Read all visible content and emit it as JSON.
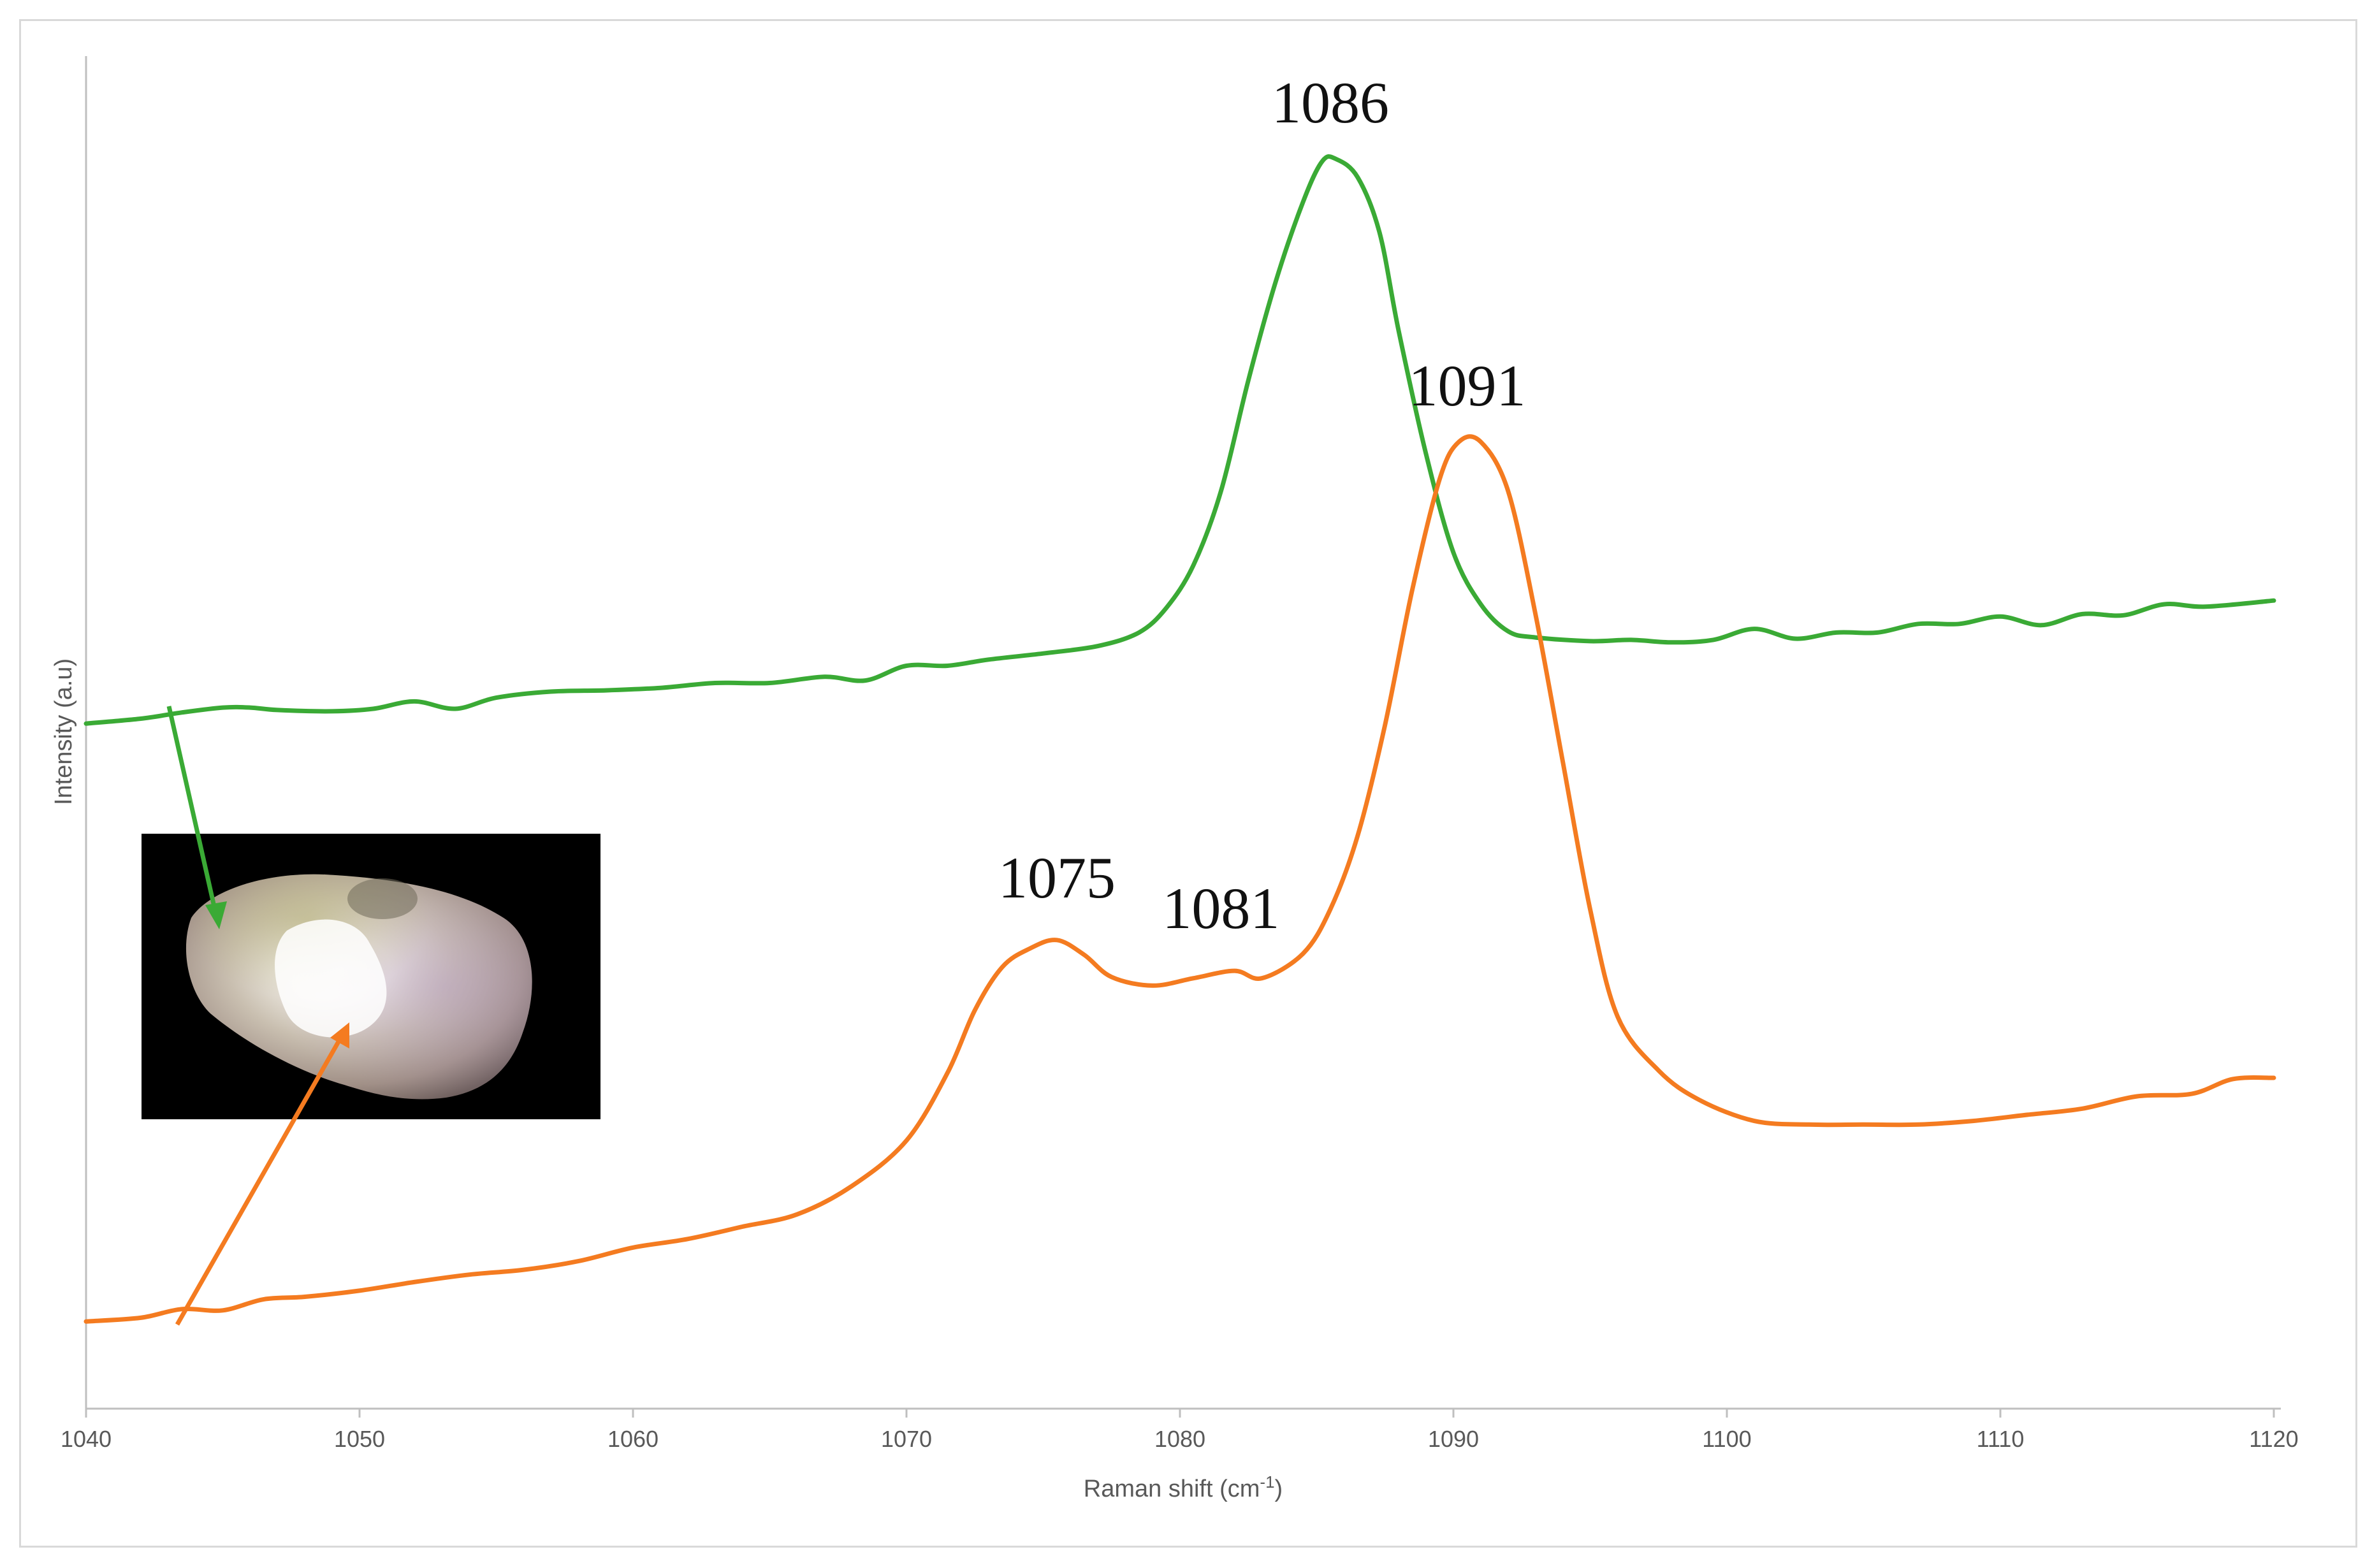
{
  "chart_data": {
    "type": "line",
    "xlabel": "Raman shift (cm",
    "xlabel_sup": "-1",
    "xlabel_end": ")",
    "ylabel": "Intensity (a.u)",
    "xlim": [
      1040,
      1120
    ],
    "ylim": [
      0,
      1
    ],
    "x_ticks": [
      "1040",
      "1050",
      "1060",
      "1070",
      "1080",
      "1090",
      "1100",
      "1110",
      "1120"
    ],
    "grid": false,
    "legend": "none",
    "series": [
      {
        "color": "#3aaa35",
        "points": [
          [
            1040,
            0.531
          ],
          [
            1042,
            0.535
          ],
          [
            1043.5,
            0.54
          ],
          [
            1045,
            0.544
          ],
          [
            1046,
            0.544
          ],
          [
            1047,
            0.542
          ],
          [
            1049,
            0.541
          ],
          [
            1050.5,
            0.543
          ],
          [
            1052,
            0.549
          ],
          [
            1053.5,
            0.543
          ],
          [
            1055,
            0.552
          ],
          [
            1057,
            0.557
          ],
          [
            1059,
            0.558
          ],
          [
            1061,
            0.56
          ],
          [
            1063,
            0.564
          ],
          [
            1065,
            0.564
          ],
          [
            1067,
            0.569
          ],
          [
            1068.5,
            0.566
          ],
          [
            1070,
            0.578
          ],
          [
            1071.5,
            0.578
          ],
          [
            1073,
            0.583
          ],
          [
            1075,
            0.588
          ],
          [
            1077,
            0.594
          ],
          [
            1078.5,
            0.605
          ],
          [
            1079.5,
            0.625
          ],
          [
            1080.5,
            0.66
          ],
          [
            1081.5,
            0.72
          ],
          [
            1082.5,
            0.81
          ],
          [
            1083.5,
            0.89
          ],
          [
            1084.5,
            0.955
          ],
          [
            1085.2,
            0.988
          ],
          [
            1085.7,
            0.99
          ],
          [
            1086.5,
            0.975
          ],
          [
            1087.3,
            0.93
          ],
          [
            1088,
            0.85
          ],
          [
            1089,
            0.75
          ],
          [
            1090,
            0.67
          ],
          [
            1091,
            0.628
          ],
          [
            1092,
            0.606
          ],
          [
            1093,
            0.601
          ],
          [
            1095,
            0.598
          ],
          [
            1096.5,
            0.599
          ],
          [
            1098,
            0.597
          ],
          [
            1099.5,
            0.599
          ],
          [
            1101,
            0.608
          ],
          [
            1102.5,
            0.6
          ],
          [
            1104,
            0.605
          ],
          [
            1105.5,
            0.605
          ],
          [
            1107,
            0.612
          ],
          [
            1108.5,
            0.612
          ],
          [
            1110,
            0.618
          ],
          [
            1111.5,
            0.611
          ],
          [
            1113,
            0.62
          ],
          [
            1114.5,
            0.619
          ],
          [
            1116,
            0.628
          ],
          [
            1117.5,
            0.626
          ],
          [
            1120,
            0.631
          ]
        ]
      },
      {
        "color": "#f47b20",
        "points": [
          [
            1040,
            0.045
          ],
          [
            1042,
            0.048
          ],
          [
            1043.5,
            0.055
          ],
          [
            1045,
            0.054
          ],
          [
            1046.5,
            0.063
          ],
          [
            1048,
            0.065
          ],
          [
            1050,
            0.07
          ],
          [
            1052,
            0.077
          ],
          [
            1054,
            0.083
          ],
          [
            1056,
            0.087
          ],
          [
            1058,
            0.094
          ],
          [
            1060,
            0.105
          ],
          [
            1062,
            0.112
          ],
          [
            1064,
            0.122
          ],
          [
            1066,
            0.132
          ],
          [
            1068,
            0.155
          ],
          [
            1070,
            0.192
          ],
          [
            1071.5,
            0.247
          ],
          [
            1072.5,
            0.298
          ],
          [
            1073.5,
            0.333
          ],
          [
            1074.5,
            0.348
          ],
          [
            1075.5,
            0.355
          ],
          [
            1076.5,
            0.343
          ],
          [
            1077.5,
            0.325
          ],
          [
            1079,
            0.318
          ],
          [
            1080.5,
            0.324
          ],
          [
            1082,
            0.33
          ],
          [
            1083,
            0.324
          ],
          [
            1084.5,
            0.344
          ],
          [
            1085.5,
            0.38
          ],
          [
            1086.5,
            0.44
          ],
          [
            1087.5,
            0.53
          ],
          [
            1088.5,
            0.64
          ],
          [
            1089.5,
            0.73
          ],
          [
            1090.2,
            0.76
          ],
          [
            1091,
            0.76
          ],
          [
            1092,
            0.72
          ],
          [
            1093,
            0.62
          ],
          [
            1094,
            0.5
          ],
          [
            1095,
            0.38
          ],
          [
            1096,
            0.293
          ],
          [
            1097.5,
            0.249
          ],
          [
            1099,
            0.225
          ],
          [
            1101,
            0.208
          ],
          [
            1103,
            0.205
          ],
          [
            1105,
            0.205
          ],
          [
            1107,
            0.205
          ],
          [
            1109,
            0.208
          ],
          [
            1111,
            0.213
          ],
          [
            1113,
            0.218
          ],
          [
            1115,
            0.228
          ],
          [
            1117,
            0.23
          ],
          [
            1118.5,
            0.242
          ],
          [
            1120,
            0.243
          ]
        ]
      }
    ],
    "annotations": [
      {
        "text": "1086",
        "x": 1085.5,
        "y": 1.0
      },
      {
        "text": "1091",
        "x": 1090.5,
        "y": 0.77
      },
      {
        "text": "1075",
        "x": 1075.5,
        "y": 0.37
      },
      {
        "text": "1081",
        "x": 1081.5,
        "y": 0.345
      }
    ],
    "inset": {
      "type": "photo",
      "background": "#000000",
      "arrow_colors": [
        "#3aaa35",
        "#f47b20"
      ]
    }
  }
}
